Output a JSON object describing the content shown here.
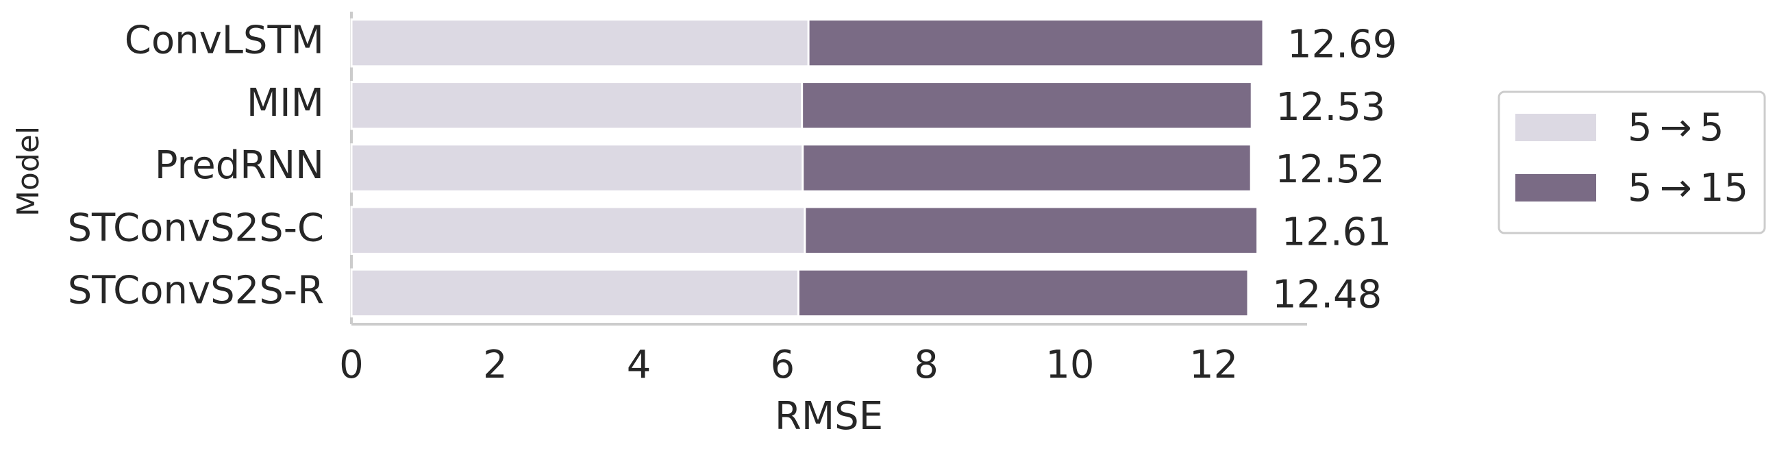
{
  "chart_data": {
    "type": "bar",
    "orientation": "horizontal",
    "overlap": true,
    "xlabel": "RMSE",
    "ylabel": "Model",
    "categories": [
      "ConvLSTM",
      "MIM",
      "PredRNN",
      "STConvS2S-C",
      "STConvS2S-R"
    ],
    "series": [
      {
        "name": "5 → 5",
        "color": "#dcd9e3",
        "values": [
          6.36,
          6.27,
          6.28,
          6.31,
          6.22
        ]
      },
      {
        "name": "5 → 15",
        "color": "#7a6b85",
        "values": [
          12.69,
          12.53,
          12.52,
          12.61,
          12.48
        ],
        "show_value_labels": true
      }
    ],
    "xlim": [
      0,
      13.3
    ],
    "xticks": [
      0,
      2,
      4,
      6,
      8,
      10,
      12
    ],
    "legend": "right"
  }
}
